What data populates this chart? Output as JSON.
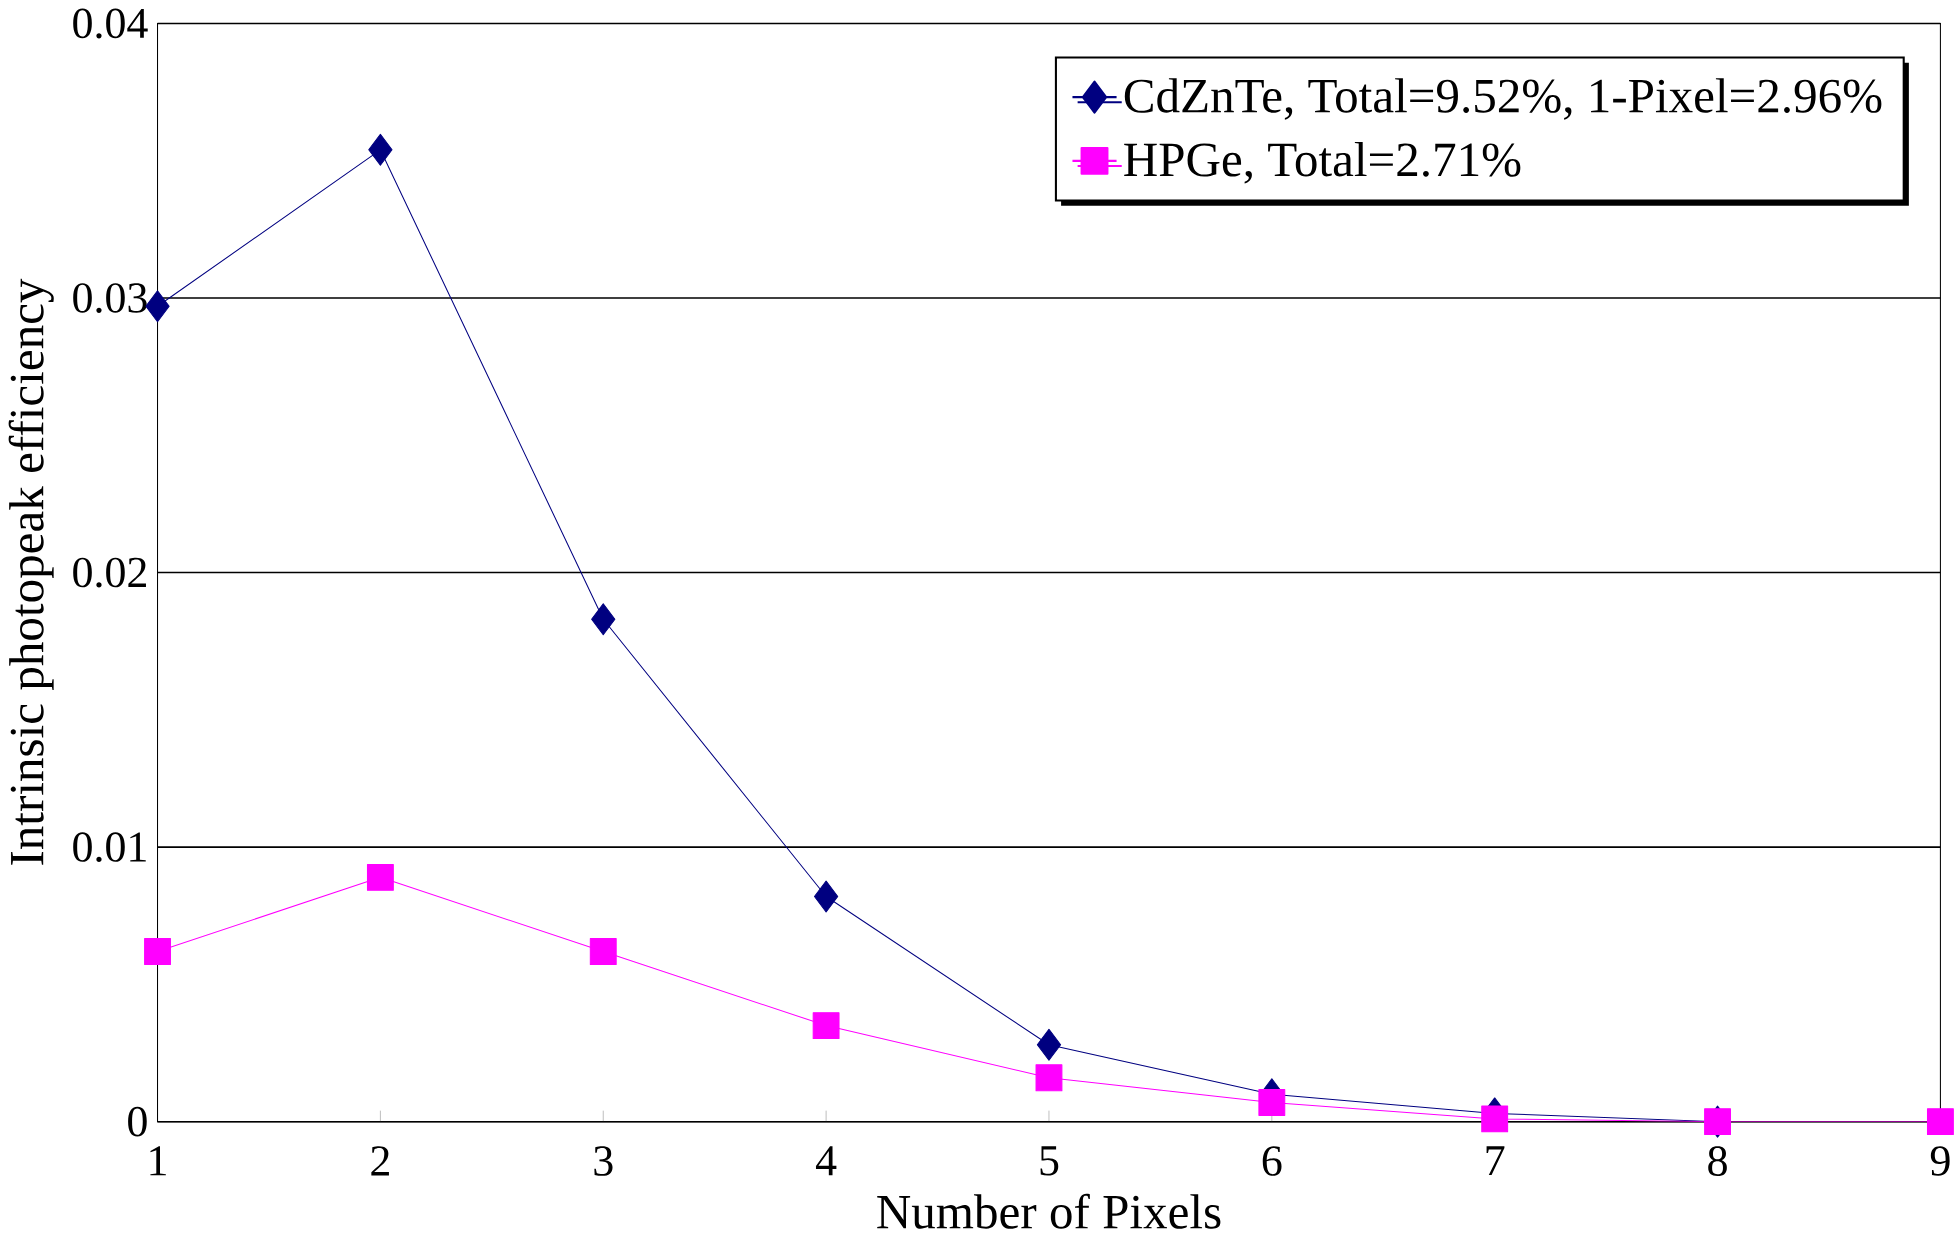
{
  "chart_data": {
    "type": "line",
    "xlabel": "Number of Pixels",
    "ylabel": "Intrinsic photopeak efficiency",
    "x": [
      1,
      2,
      3,
      4,
      5,
      6,
      7,
      8,
      9
    ],
    "series": [
      {
        "name": "CdZnTe, Total=9.52%, 1-Pixel=2.96%",
        "color": "#000080",
        "marker": "diamond",
        "values": [
          0.0297,
          0.0354,
          0.0183,
          0.0082,
          0.0028,
          0.001,
          0.0003,
          0.0,
          null
        ]
      },
      {
        "name": "HPGe, Total=2.71%",
        "color": "#ff00ff",
        "marker": "square",
        "values": [
          0.0062,
          0.0089,
          0.0062,
          0.0035,
          0.0016,
          0.0007,
          0.0001,
          0.0,
          0.0
        ]
      }
    ],
    "xlim": [
      1,
      9
    ],
    "xticks": [
      1,
      2,
      3,
      4,
      5,
      6,
      7,
      8,
      9
    ],
    "ylim": [
      0,
      0.04
    ],
    "yticks": [
      0,
      0.01,
      0.02,
      0.03,
      0.04
    ],
    "grid": "y",
    "legend": "top right",
    "line_style": "solid"
  }
}
